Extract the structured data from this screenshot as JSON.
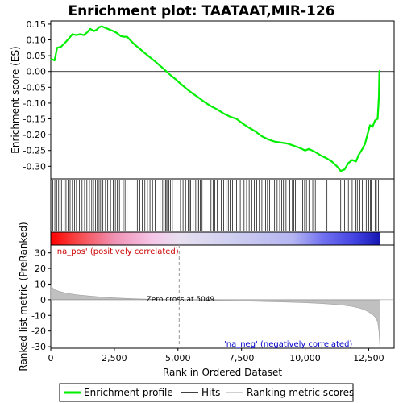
{
  "chart_data": {
    "type": "line",
    "title": "Enrichment plot: TAATAAT,MIR-126",
    "xlabel": "Rank in Ordered Dataset",
    "ylabel_top": "Enrichment score (ES)",
    "ylabel_bottom": "Ranked list metric (PreRanked)",
    "xlim": [
      0,
      13500
    ],
    "x_ticks": [
      0,
      2500,
      5000,
      7500,
      10000,
      12500
    ],
    "x_tick_labels": [
      "0",
      "2,500",
      "5,000",
      "7,500",
      "10,000",
      "12,500"
    ],
    "es_ylim": [
      -0.34,
      0.16
    ],
    "es_ticks": [
      -0.3,
      -0.25,
      -0.2,
      -0.15,
      -0.1,
      -0.05,
      0.0,
      0.05,
      0.1,
      0.15
    ],
    "es_tick_labels": [
      "-0.30",
      "-0.25",
      "-0.20",
      "-0.15",
      "-0.10",
      "-0.05",
      "0.00",
      "0.05",
      "0.10",
      "0.15"
    ],
    "metric_ylim": [
      -31,
      35
    ],
    "metric_ticks": [
      -30,
      -20,
      -10,
      0,
      10,
      20,
      30
    ],
    "metric_tick_labels": [
      "-30",
      "-20",
      "-10",
      "0",
      "10",
      "20",
      "30"
    ],
    "series": [
      {
        "name": "Enrichment profile",
        "color": "#00ee00",
        "x": [
          0,
          150,
          250,
          400,
          550,
          700,
          850,
          1000,
          1150,
          1300,
          1450,
          1550,
          1700,
          1800,
          1900,
          2000,
          2150,
          2300,
          2450,
          2600,
          2750,
          2850,
          3000,
          3150,
          3300,
          3500,
          3700,
          3900,
          4100,
          4300,
          4500,
          4700,
          4900,
          5049,
          5300,
          5550,
          5800,
          6050,
          6300,
          6550,
          6800,
          7050,
          7300,
          7550,
          7800,
          8050,
          8300,
          8550,
          8800,
          9050,
          9300,
          9550,
          9800,
          10000,
          10150,
          10400,
          10600,
          10850,
          11050,
          11250,
          11400,
          11550,
          11700,
          11850,
          12000,
          12100,
          12250,
          12350,
          12450,
          12550,
          12650,
          12750,
          12850,
          12900,
          12920,
          12940
        ],
        "y": [
          0.04,
          0.035,
          0.075,
          0.078,
          0.09,
          0.103,
          0.118,
          0.115,
          0.118,
          0.115,
          0.125,
          0.135,
          0.128,
          0.132,
          0.14,
          0.143,
          0.138,
          0.133,
          0.128,
          0.122,
          0.112,
          0.11,
          0.11,
          0.097,
          0.085,
          0.072,
          0.058,
          0.045,
          0.032,
          0.018,
          0.004,
          -0.011,
          -0.024,
          -0.035,
          -0.052,
          -0.068,
          -0.082,
          -0.097,
          -0.11,
          -0.12,
          -0.133,
          -0.143,
          -0.15,
          -0.165,
          -0.178,
          -0.19,
          -0.205,
          -0.215,
          -0.222,
          -0.225,
          -0.228,
          -0.235,
          -0.242,
          -0.25,
          -0.245,
          -0.255,
          -0.265,
          -0.275,
          -0.285,
          -0.3,
          -0.315,
          -0.31,
          -0.29,
          -0.28,
          -0.285,
          -0.265,
          -0.245,
          -0.23,
          -0.2,
          -0.17,
          -0.175,
          -0.155,
          -0.15,
          -0.08,
          0.0,
          0.003
        ]
      },
      {
        "name": "Hits",
        "color": "#000000",
        "positions": [
          80,
          160,
          230,
          310,
          420,
          530,
          600,
          680,
          760,
          850,
          930,
          1010,
          1120,
          1230,
          1330,
          1420,
          1520,
          1610,
          1680,
          1760,
          1830,
          1900,
          1960,
          2050,
          2150,
          2240,
          2350,
          2460,
          2540,
          2620,
          2700,
          2850,
          2920,
          3000,
          3400,
          3500,
          3600,
          3700,
          3800,
          3900,
          4000,
          4100,
          4300,
          4400,
          4460,
          4520,
          4560,
          4600,
          4640,
          4700,
          4780,
          5100,
          5200,
          5300,
          5400,
          5450,
          5500,
          5600,
          5700,
          5760,
          5820,
          5880,
          5950,
          6300,
          6380,
          6450,
          6550,
          6700,
          6800,
          6900,
          6980,
          7050,
          7150,
          7300,
          7450,
          7600,
          7700,
          7800,
          7900,
          8000,
          8100,
          8200,
          8300,
          8380,
          8450,
          8520,
          8600,
          8700,
          8800,
          8900,
          9000,
          9080,
          9150,
          9250,
          9400,
          9500,
          9550,
          9620,
          9900,
          9980,
          10050,
          10150,
          10300,
          10400,
          10820,
          10860,
          11400,
          11550,
          11650,
          11700,
          11800,
          11850,
          12000,
          12050,
          12150,
          12250,
          12400,
          12500,
          12560,
          12600,
          12750,
          12800,
          12880
        ]
      },
      {
        "name": "Ranking metric scores",
        "color": "#c0c0c0",
        "x": [
          0,
          50,
          150,
          300,
          600,
          1000,
          1500,
          2000,
          2500,
          3000,
          3500,
          4000,
          4500,
          5049,
          6000,
          7000,
          8000,
          9000,
          10000,
          10500,
          11000,
          11500,
          11800,
          12100,
          12300,
          12500,
          12650,
          12750,
          12850,
          12900,
          12940
        ],
        "y": [
          10,
          8,
          6.5,
          5.5,
          4.2,
          3.2,
          2.4,
          1.7,
          1.2,
          0.8,
          0.5,
          0.3,
          0.15,
          0,
          -0.3,
          -0.6,
          -1.0,
          -1.4,
          -1.9,
          -2.3,
          -2.8,
          -3.5,
          -4.2,
          -5.2,
          -6.2,
          -7.8,
          -9.5,
          -11,
          -14,
          -20,
          -30
        ]
      }
    ],
    "annotations": {
      "pos_label": "'na_pos' (positively correlated)",
      "neg_label": "'na_neg' (negatively correlated)",
      "zero_cross": "Zero cross at 5049",
      "zero_cross_x": 5049
    },
    "heatmap_stops": [
      {
        "x": 0,
        "color": "#ff0000"
      },
      {
        "x": 1000,
        "color": "#f74545"
      },
      {
        "x": 2500,
        "color": "#f092b4"
      },
      {
        "x": 4000,
        "color": "#f5c6e8"
      },
      {
        "x": 5049,
        "color": "#e8e0f0"
      },
      {
        "x": 7000,
        "color": "#d0d0f0"
      },
      {
        "x": 9500,
        "color": "#b5b5f2"
      },
      {
        "x": 10700,
        "color": "#7070f0"
      },
      {
        "x": 12000,
        "color": "#4040e0"
      },
      {
        "x": 12940,
        "color": "#1515b0"
      }
    ],
    "legend": [
      {
        "label": "Enrichment profile",
        "color": "#00ee00"
      },
      {
        "label": "Hits",
        "color": "#000000"
      },
      {
        "label": "Ranking metric scores",
        "color": "#c0c0c0"
      }
    ]
  }
}
